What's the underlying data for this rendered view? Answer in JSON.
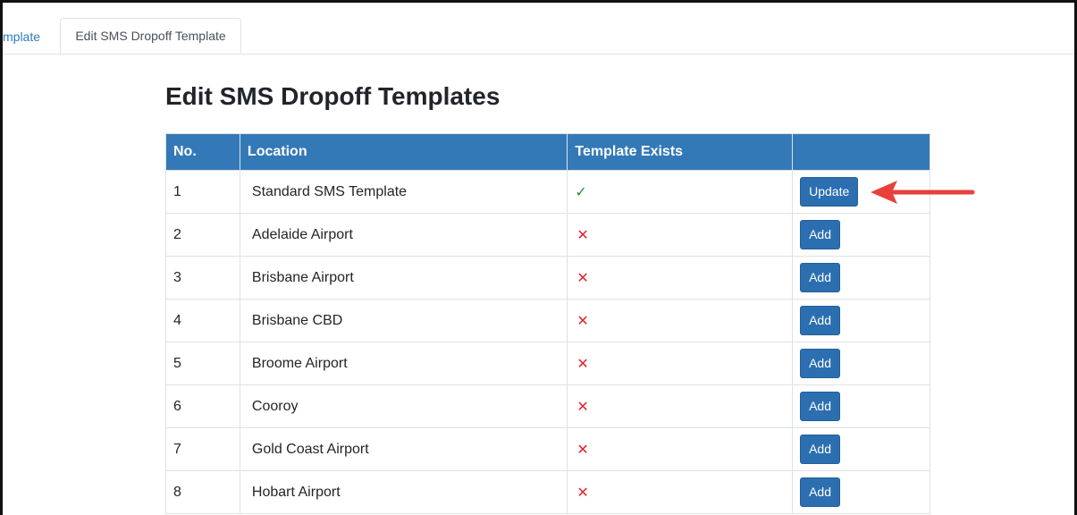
{
  "tabs": [
    {
      "label": "mplate"
    },
    {
      "label": "Edit SMS Dropoff Template"
    }
  ],
  "page_title": "Edit SMS Dropoff Templates",
  "table": {
    "headers": [
      "No.",
      "Location",
      "Template Exists",
      ""
    ],
    "rows": [
      {
        "no": "1",
        "location": "Standard SMS Template",
        "exists": "✓",
        "action": "Update"
      },
      {
        "no": "2",
        "location": "Adelaide Airport",
        "exists": "✕",
        "action": "Add"
      },
      {
        "no": "3",
        "location": "Brisbane Airport",
        "exists": "✕",
        "action": "Add"
      },
      {
        "no": "4",
        "location": "Brisbane CBD",
        "exists": "✕",
        "action": "Add"
      },
      {
        "no": "5",
        "location": "Broome Airport",
        "exists": "✕",
        "action": "Add"
      },
      {
        "no": "6",
        "location": "Cooroy",
        "exists": "✕",
        "action": "Add"
      },
      {
        "no": "7",
        "location": "Gold Coast Airport",
        "exists": "✕",
        "action": "Add"
      },
      {
        "no": "8",
        "location": "Hobart Airport",
        "exists": "✕",
        "action": "Add"
      }
    ]
  },
  "colors": {
    "header_bg": "#3479b7",
    "button_bg": "#2b6fb1",
    "check": "#2e8b3e",
    "cross": "#e0242f",
    "annotation_arrow": "#e8403a"
  },
  "icons": {
    "check": "check-icon",
    "cross": "cross-icon",
    "annotation": "red-arrow-icon"
  }
}
